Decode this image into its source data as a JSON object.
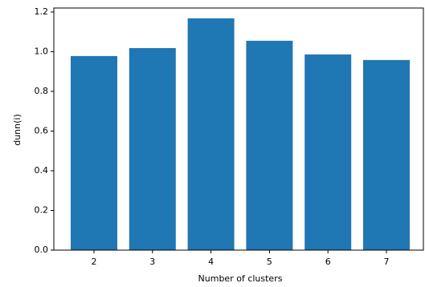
{
  "chart_data": {
    "type": "bar",
    "xlabel": "Number of clusters",
    "ylabel": "dunn(i)",
    "categories": [
      "2",
      "3",
      "4",
      "5",
      "6",
      "7"
    ],
    "values": [
      0.978,
      1.018,
      1.168,
      1.055,
      0.986,
      0.958
    ],
    "color": "#1f77b4",
    "ylim": [
      0,
      1.22
    ],
    "yticks": [
      {
        "value": 0,
        "label": "0.0"
      },
      0.2,
      0.4,
      0.6,
      0.8,
      {
        "value": 1,
        "label": "1.0"
      },
      1.2
    ]
  }
}
